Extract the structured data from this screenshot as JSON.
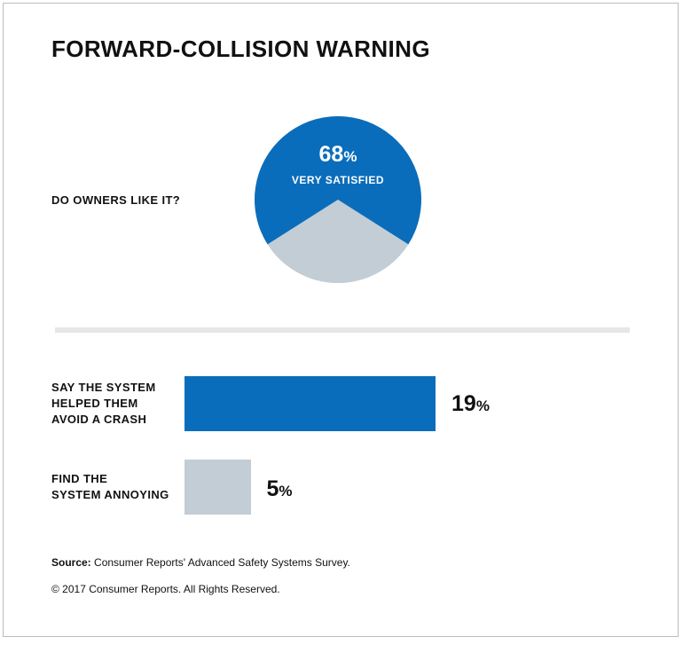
{
  "title": "FORWARD-COLLISION WARNING",
  "pie": {
    "question": "DO OWNERS LIKE IT?",
    "value_number": "68",
    "value_unit": "%",
    "caption": "VERY SATISFIED"
  },
  "bars": [
    {
      "label": "SAY THE SYSTEM\nHELPED THEM\nAVOID A CRASH",
      "value_number": "19",
      "value_unit": "%"
    },
    {
      "label": "FIND THE\nSYSTEM ANNOYING",
      "value_number": "5",
      "value_unit": "%"
    }
  ],
  "source": {
    "prefix": "Source:",
    "text": "Consumer Reports' Advanced Safety Systems Survey."
  },
  "copyright": "© 2017 Consumer Reports. All Rights Reserved.",
  "colors": {
    "primary": "#0a6dbb",
    "secondary": "#c2cdd5"
  },
  "chart_data": [
    {
      "type": "pie",
      "title": "DO OWNERS LIKE IT?",
      "slices": [
        {
          "label": "VERY SATISFIED",
          "value": 68,
          "color": "#0a6dbb"
        },
        {
          "label": "",
          "value": 32,
          "color": "#c2cdd5"
        }
      ]
    },
    {
      "type": "bar",
      "orientation": "horizontal",
      "categories": [
        "SAY THE SYSTEM HELPED THEM AVOID A CRASH",
        "FIND THE SYSTEM ANNOYING"
      ],
      "values": [
        19,
        5
      ],
      "unit": "%",
      "colors": [
        "#0a6dbb",
        "#c2cdd5"
      ]
    }
  ]
}
